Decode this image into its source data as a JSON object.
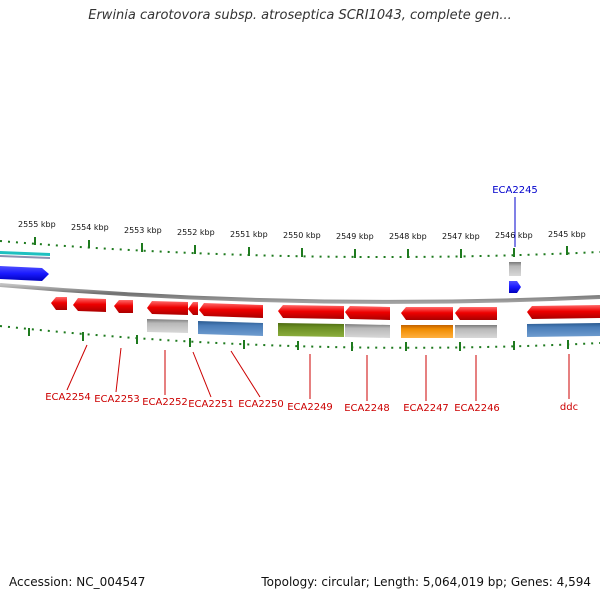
{
  "title": "Erwinia carotovora subsp. atroseptica SCRI1043, complete gen...",
  "footer": {
    "accession": "Accession: NC_004547",
    "summary": "Topology: circular; Length: 5,064,019 bp; Genes: 4,594"
  },
  "colors": {
    "backbone": "#808080",
    "tick": "#1e7a1e",
    "gene_red": "#ee0000",
    "label_red": "#cc0000",
    "label_blue": "#0000cc",
    "gray_feature": "#b4b4b4",
    "blue_feature": "#4a7db8",
    "green_feature": "#6b8e23",
    "orange_feature": "#f08c00",
    "cyan_feature": "#20c0c0",
    "royal_blue_feature": "#1a1aff"
  },
  "scale_labels": [
    "2555 kbp",
    "2554 kbp",
    "2553 kbp",
    "2552 kbp",
    "2551 kbp",
    "2550 kbp",
    "2549 kbp",
    "2548 kbp",
    "2547 kbp",
    "2546 kbp",
    "2545 kbp"
  ],
  "gene_labels": [
    "ECA2254",
    "ECA2253",
    "ECA2252",
    "ECA2251",
    "ECA2250",
    "ECA2249",
    "ECA2248",
    "ECA2247",
    "ECA2246",
    "ECA2245",
    "ddc"
  ]
}
